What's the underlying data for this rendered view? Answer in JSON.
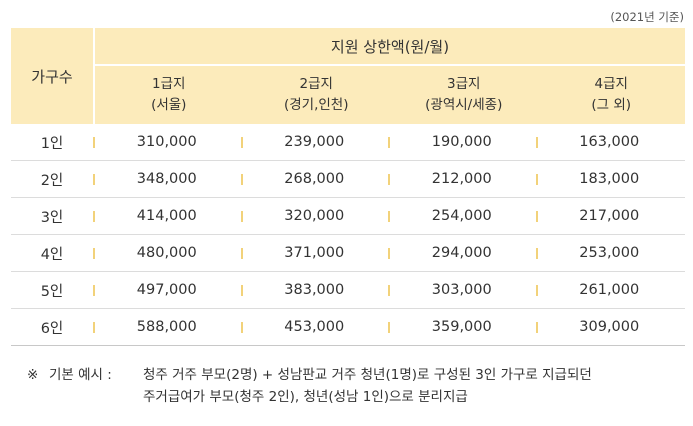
{
  "basis": "(2021년 기준)",
  "header": {
    "household_label": "가구수",
    "title": "지원 상한액(원/월)",
    "grades": [
      {
        "name": "1급지",
        "area": "(서울)"
      },
      {
        "name": "2급지",
        "area": "(경기,인천)"
      },
      {
        "name": "3급지",
        "area": "(광역시/세종)"
      },
      {
        "name": "4급지",
        "area": "(그 외)"
      }
    ]
  },
  "rows": [
    {
      "household": "1인",
      "values": [
        "310,000",
        "239,000",
        "190,000",
        "163,000"
      ]
    },
    {
      "household": "2인",
      "values": [
        "348,000",
        "268,000",
        "212,000",
        "183,000"
      ]
    },
    {
      "household": "3인",
      "values": [
        "414,000",
        "320,000",
        "254,000",
        "217,000"
      ]
    },
    {
      "household": "4인",
      "values": [
        "480,000",
        "371,000",
        "294,000",
        "253,000"
      ]
    },
    {
      "household": "5인",
      "values": [
        "497,000",
        "383,000",
        "303,000",
        "261,000"
      ]
    },
    {
      "household": "6인",
      "values": [
        "588,000",
        "453,000",
        "359,000",
        "309,000"
      ]
    }
  ],
  "note": {
    "mark": "※",
    "label": "기본 예시 :",
    "line1": "청주 거주 부모(2명) + 성남판교 거주 청년(1명)로 구성된 3인 가구로 지급되던",
    "line2": "주거급여가 부모(청주 2인), 청년(성남 1인)으로 분리지급"
  },
  "colors": {
    "header_bg": "#fcebbb",
    "separator": "#f2d27a"
  }
}
